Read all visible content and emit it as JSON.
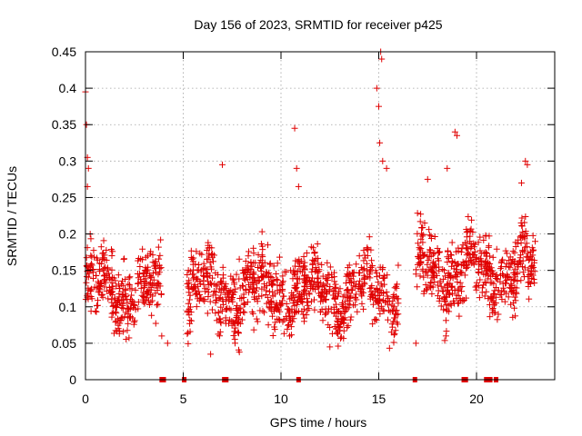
{
  "chart_data": {
    "type": "scatter",
    "title": "Day 156 of 2023, SRMTID for receiver p425",
    "xlabel": "GPS time / hours",
    "ylabel": "SRMTID / TECUs",
    "xlim": [
      0,
      24
    ],
    "ylim": [
      0,
      0.45
    ],
    "xticks": [
      0,
      5,
      10,
      15,
      20
    ],
    "xtick_labels": [
      "0",
      "5",
      "10",
      "15",
      "20"
    ],
    "yticks": [
      0,
      0.05,
      0.1,
      0.15,
      0.2,
      0.25,
      0.3,
      0.35,
      0.4,
      0.45
    ],
    "ytick_labels": [
      "0",
      "0.05",
      "0.1",
      "0.15",
      "0.2",
      "0.25",
      "0.3",
      "0.35",
      "0.4",
      "0.45"
    ],
    "grid": true,
    "marker": "+",
    "color": "#e00000",
    "series": [
      {
        "name": "SRMTID",
        "clusters": [
          {
            "x_range": [
              0.0,
              3.9
            ],
            "y_center": 0.125,
            "y_spread": 0.04
          },
          {
            "x_range": [
              5.2,
              10.5
            ],
            "y_center": 0.12,
            "y_spread": 0.045
          },
          {
            "x_range": [
              10.5,
              16.0
            ],
            "y_center": 0.12,
            "y_spread": 0.04
          },
          {
            "x_range": [
              16.9,
              19.4
            ],
            "y_center": 0.15,
            "y_spread": 0.045
          },
          {
            "x_range": [
              19.4,
              23.0
            ],
            "y_center": 0.15,
            "y_spread": 0.04
          }
        ],
        "notable_points": [
          {
            "x": 0.0,
            "y": 0.395
          },
          {
            "x": 0.05,
            "y": 0.35
          },
          {
            "x": 0.1,
            "y": 0.305
          },
          {
            "x": 0.15,
            "y": 0.29
          },
          {
            "x": 0.1,
            "y": 0.265
          },
          {
            "x": 3.9,
            "y": 0.06
          },
          {
            "x": 4.2,
            "y": 0.05
          },
          {
            "x": 6.4,
            "y": 0.035
          },
          {
            "x": 7.0,
            "y": 0.295
          },
          {
            "x": 10.7,
            "y": 0.345
          },
          {
            "x": 10.8,
            "y": 0.29
          },
          {
            "x": 10.9,
            "y": 0.265
          },
          {
            "x": 12.5,
            "y": 0.045
          },
          {
            "x": 15.1,
            "y": 0.45
          },
          {
            "x": 15.15,
            "y": 0.44
          },
          {
            "x": 14.9,
            "y": 0.4
          },
          {
            "x": 15.0,
            "y": 0.375
          },
          {
            "x": 15.05,
            "y": 0.325
          },
          {
            "x": 15.2,
            "y": 0.3
          },
          {
            "x": 15.4,
            "y": 0.29
          },
          {
            "x": 16.9,
            "y": 0.05
          },
          {
            "x": 17.5,
            "y": 0.275
          },
          {
            "x": 18.9,
            "y": 0.34
          },
          {
            "x": 19.0,
            "y": 0.335
          },
          {
            "x": 18.5,
            "y": 0.29
          },
          {
            "x": 22.5,
            "y": 0.3
          },
          {
            "x": 22.6,
            "y": 0.295
          },
          {
            "x": 22.3,
            "y": 0.27
          }
        ],
        "zero_points_x": [
          3.9,
          4.0,
          5.05,
          7.1,
          7.2,
          10.9,
          16.85,
          19.35,
          19.45,
          20.5,
          20.7,
          21.0
        ]
      }
    ]
  }
}
